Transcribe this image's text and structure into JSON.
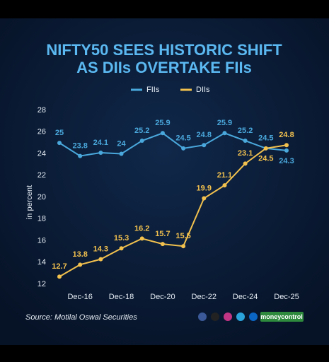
{
  "chart_data": {
    "type": "line",
    "title": [
      "NIFTY50 SEES HISTORIC SHIFT",
      "AS DIIs OVERTAKE FIIs"
    ],
    "ylabel": "in percent",
    "categories": [
      null,
      "Dec-16",
      null,
      "Dec-18",
      null,
      "Dec-20",
      null,
      "Dec-22",
      null,
      "Dec-24",
      null,
      "Dec-25"
    ],
    "series": [
      {
        "name": "FIIs",
        "color": "#4aa8dc",
        "values": [
          25,
          23.8,
          24.1,
          24,
          25.2,
          25.9,
          24.5,
          24.8,
          25.9,
          25.2,
          24.5,
          24.3
        ]
      },
      {
        "name": "DIIs",
        "color": "#f2c14e",
        "values": [
          12.7,
          13.8,
          14.3,
          15.3,
          16.2,
          15.7,
          15.5,
          19.9,
          21.1,
          23.1,
          24.5,
          24.8
        ]
      }
    ],
    "ylim": [
      12,
      28
    ],
    "yticks": [
      12,
      14,
      16,
      18,
      20,
      22,
      24,
      26,
      28
    ],
    "grid": false,
    "legend": "top",
    "source": "Source: Motilal Oswal Securities",
    "brand": "moneycontrol"
  }
}
